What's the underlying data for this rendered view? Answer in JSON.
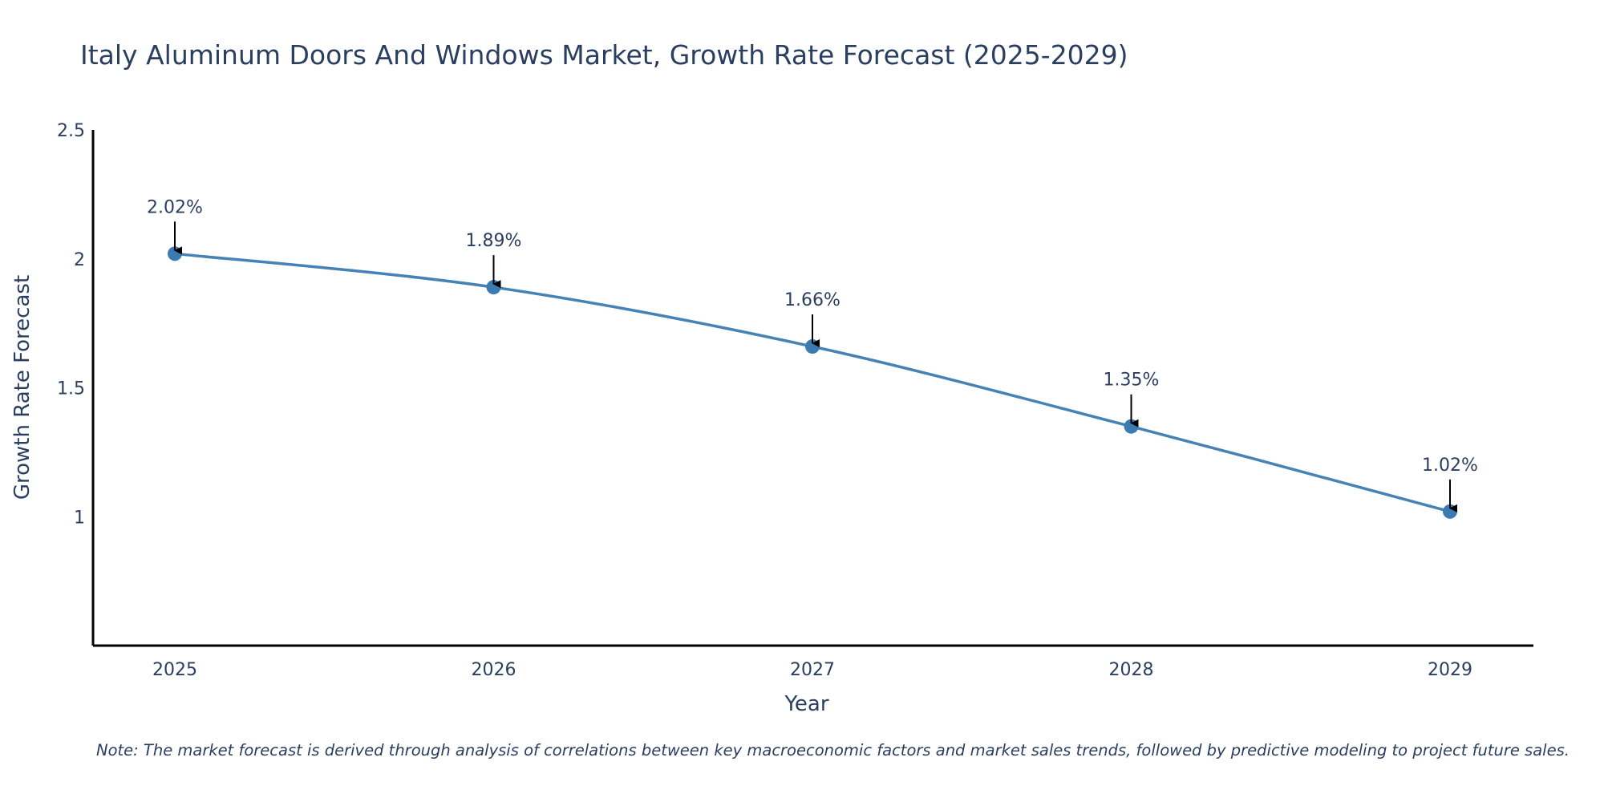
{
  "colors": {
    "line": "#4682b4",
    "marker": "#3a7bb2",
    "axis": "#000000",
    "text": "#2a3f5f",
    "arrow": "#000000"
  },
  "chart_data": {
    "type": "line",
    "title": "Italy Aluminum Doors And Windows Market, Growth Rate Forecast (2025-2029)",
    "xlabel": "Year",
    "ylabel": "Growth Rate Forecast",
    "categories": [
      "2025",
      "2026",
      "2027",
      "2028",
      "2029"
    ],
    "values": [
      2.02,
      1.89,
      1.66,
      1.35,
      1.02
    ],
    "data_labels": [
      "2.02%",
      "1.89%",
      "1.66%",
      "1.35%",
      "1.02%"
    ],
    "ylim": [
      0.5,
      2.5
    ],
    "yticks": [
      1,
      1.5,
      2,
      2.5
    ],
    "ytick_labels": [
      "1",
      "1.5",
      "2",
      "2.5"
    ],
    "grid": false,
    "legend": "none",
    "note": "Note: The market forecast is derived through analysis of correlations between key macroeconomic factors and market sales trends, followed by predictive modeling to project future sales."
  }
}
